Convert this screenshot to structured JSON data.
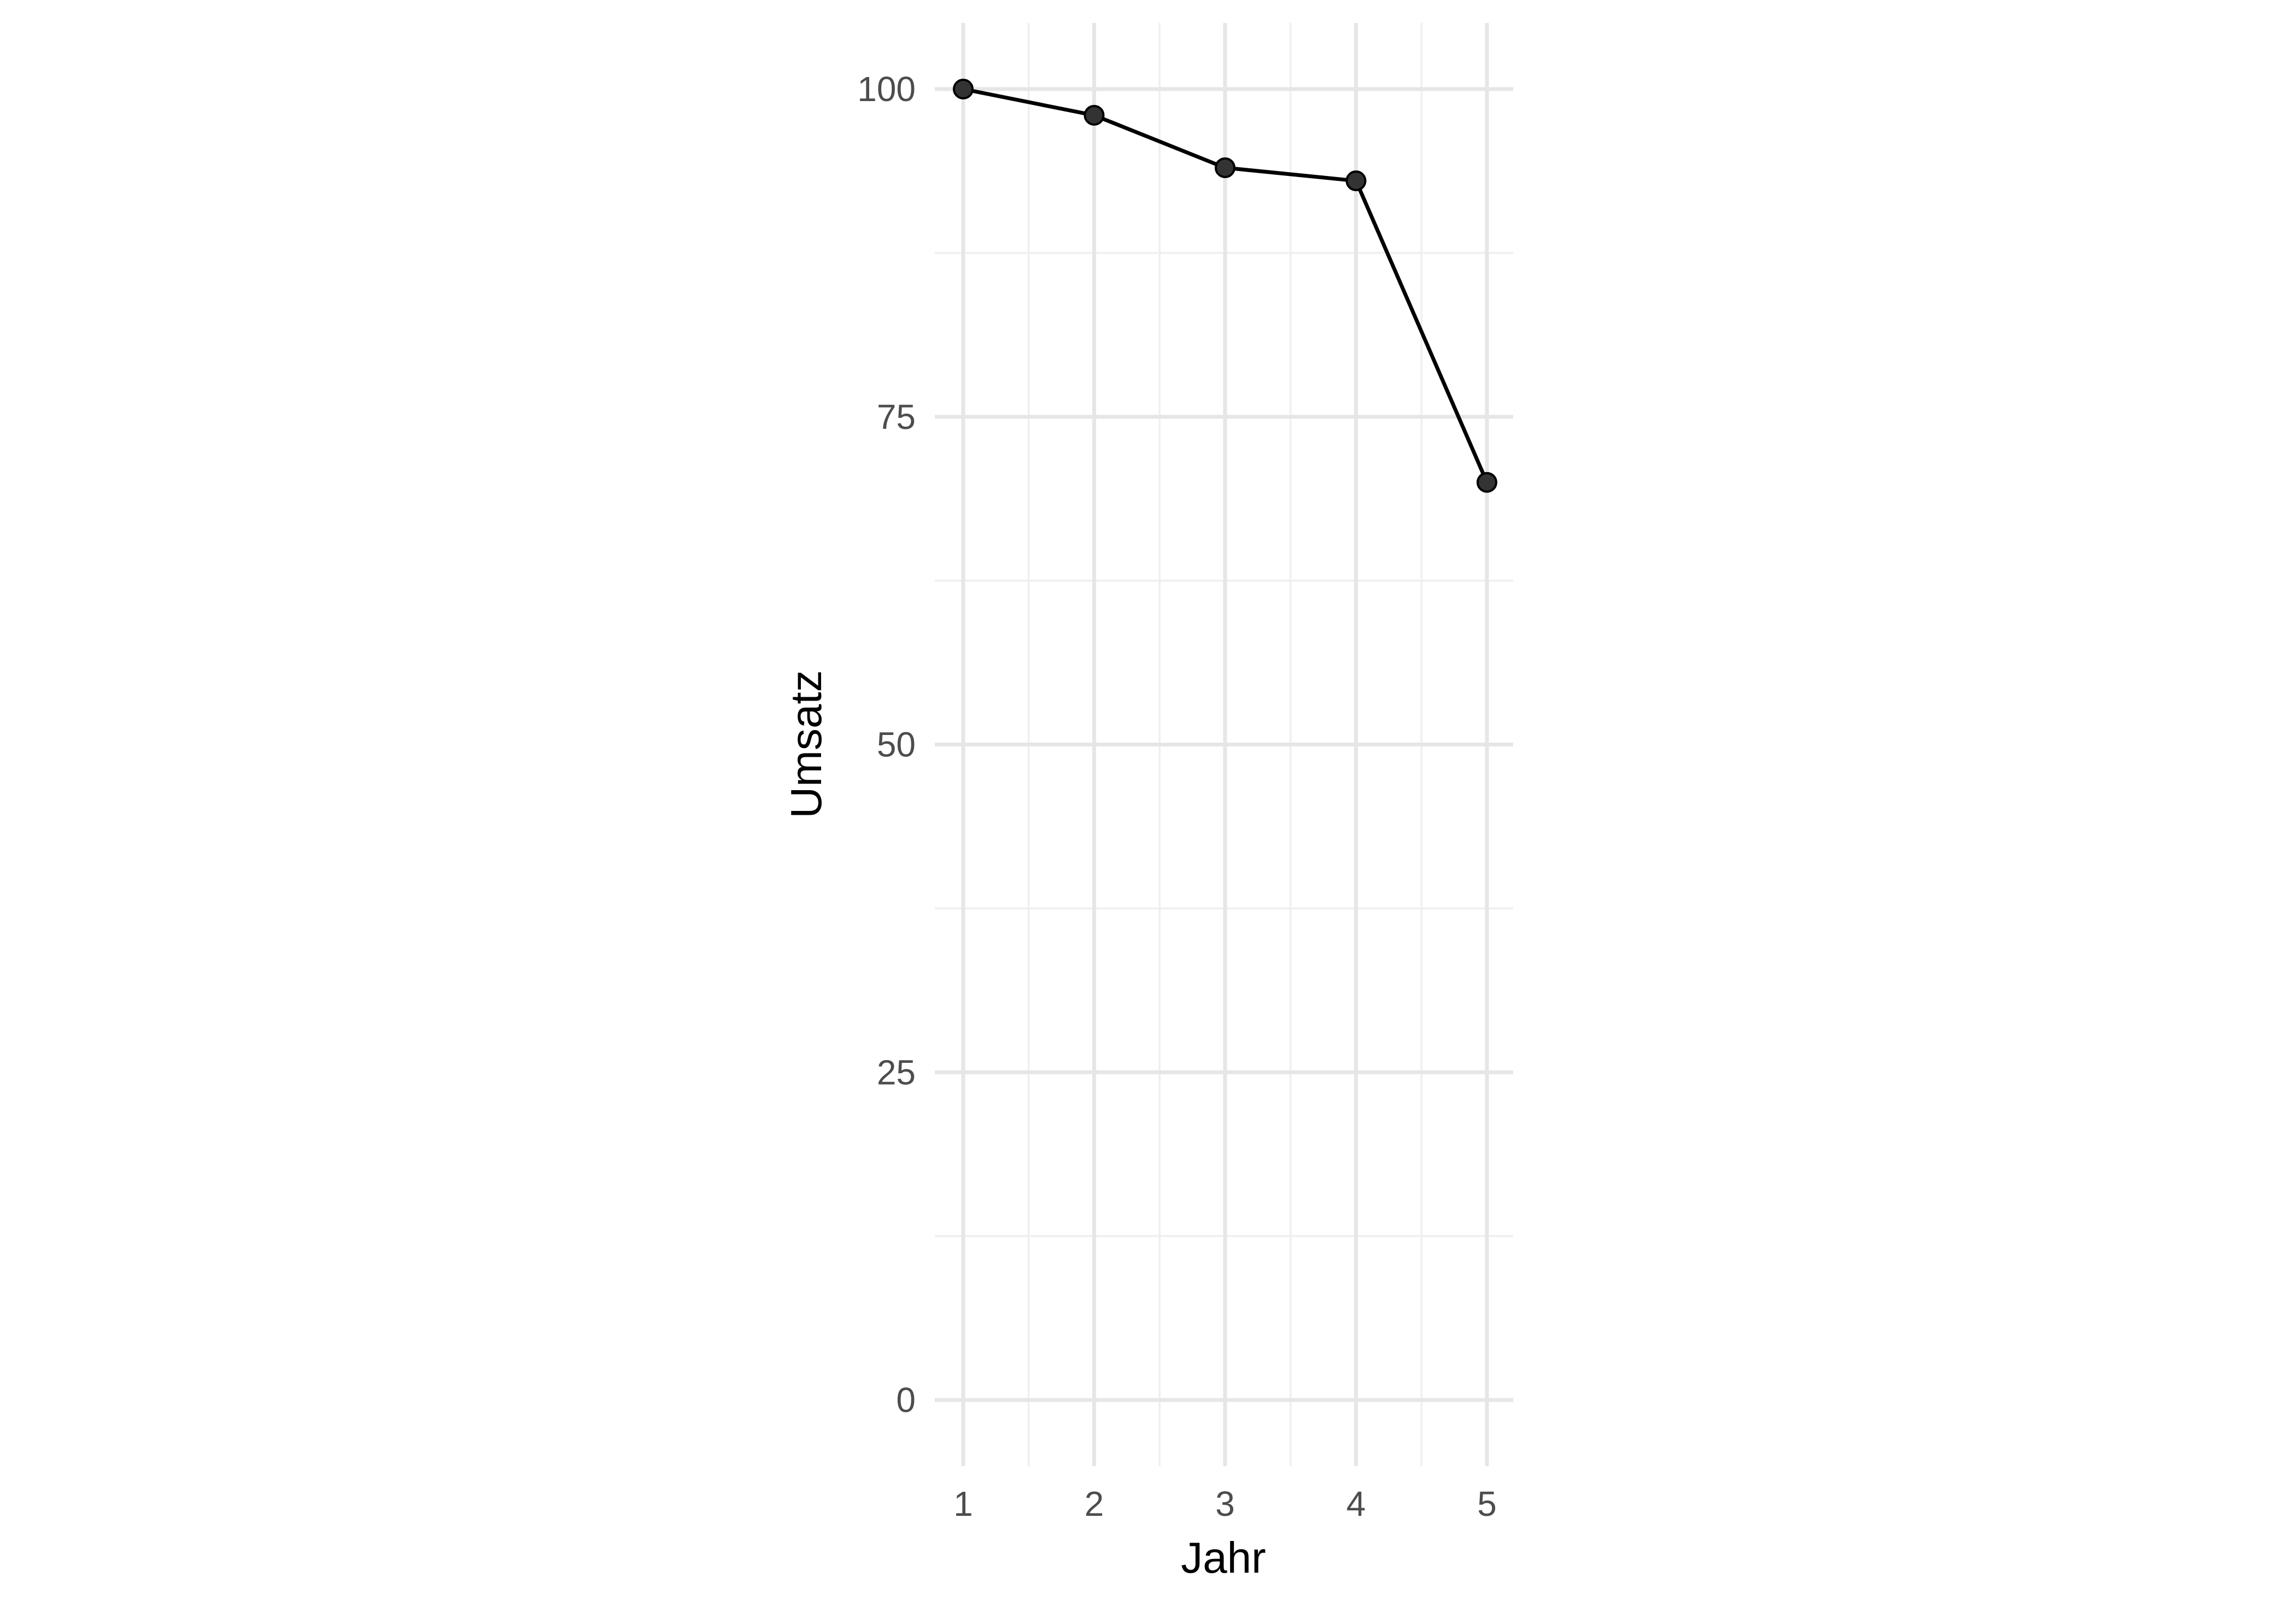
{
  "chart_data": {
    "type": "line",
    "title": "",
    "xlabel": "Jahr",
    "ylabel": "Umsatz",
    "x": [
      1,
      2,
      3,
      4,
      5
    ],
    "series": [
      {
        "values": [
          100,
          98,
          94,
          93,
          70
        ]
      }
    ],
    "xlim": [
      1,
      5
    ],
    "ylim": [
      0,
      100
    ],
    "x_ticks": [
      1,
      2,
      3,
      4,
      5
    ],
    "y_ticks": [
      0,
      25,
      50,
      75,
      100
    ],
    "grid": true,
    "legend": "none",
    "colors": {
      "line": "#000000",
      "point": "#333333"
    }
  }
}
